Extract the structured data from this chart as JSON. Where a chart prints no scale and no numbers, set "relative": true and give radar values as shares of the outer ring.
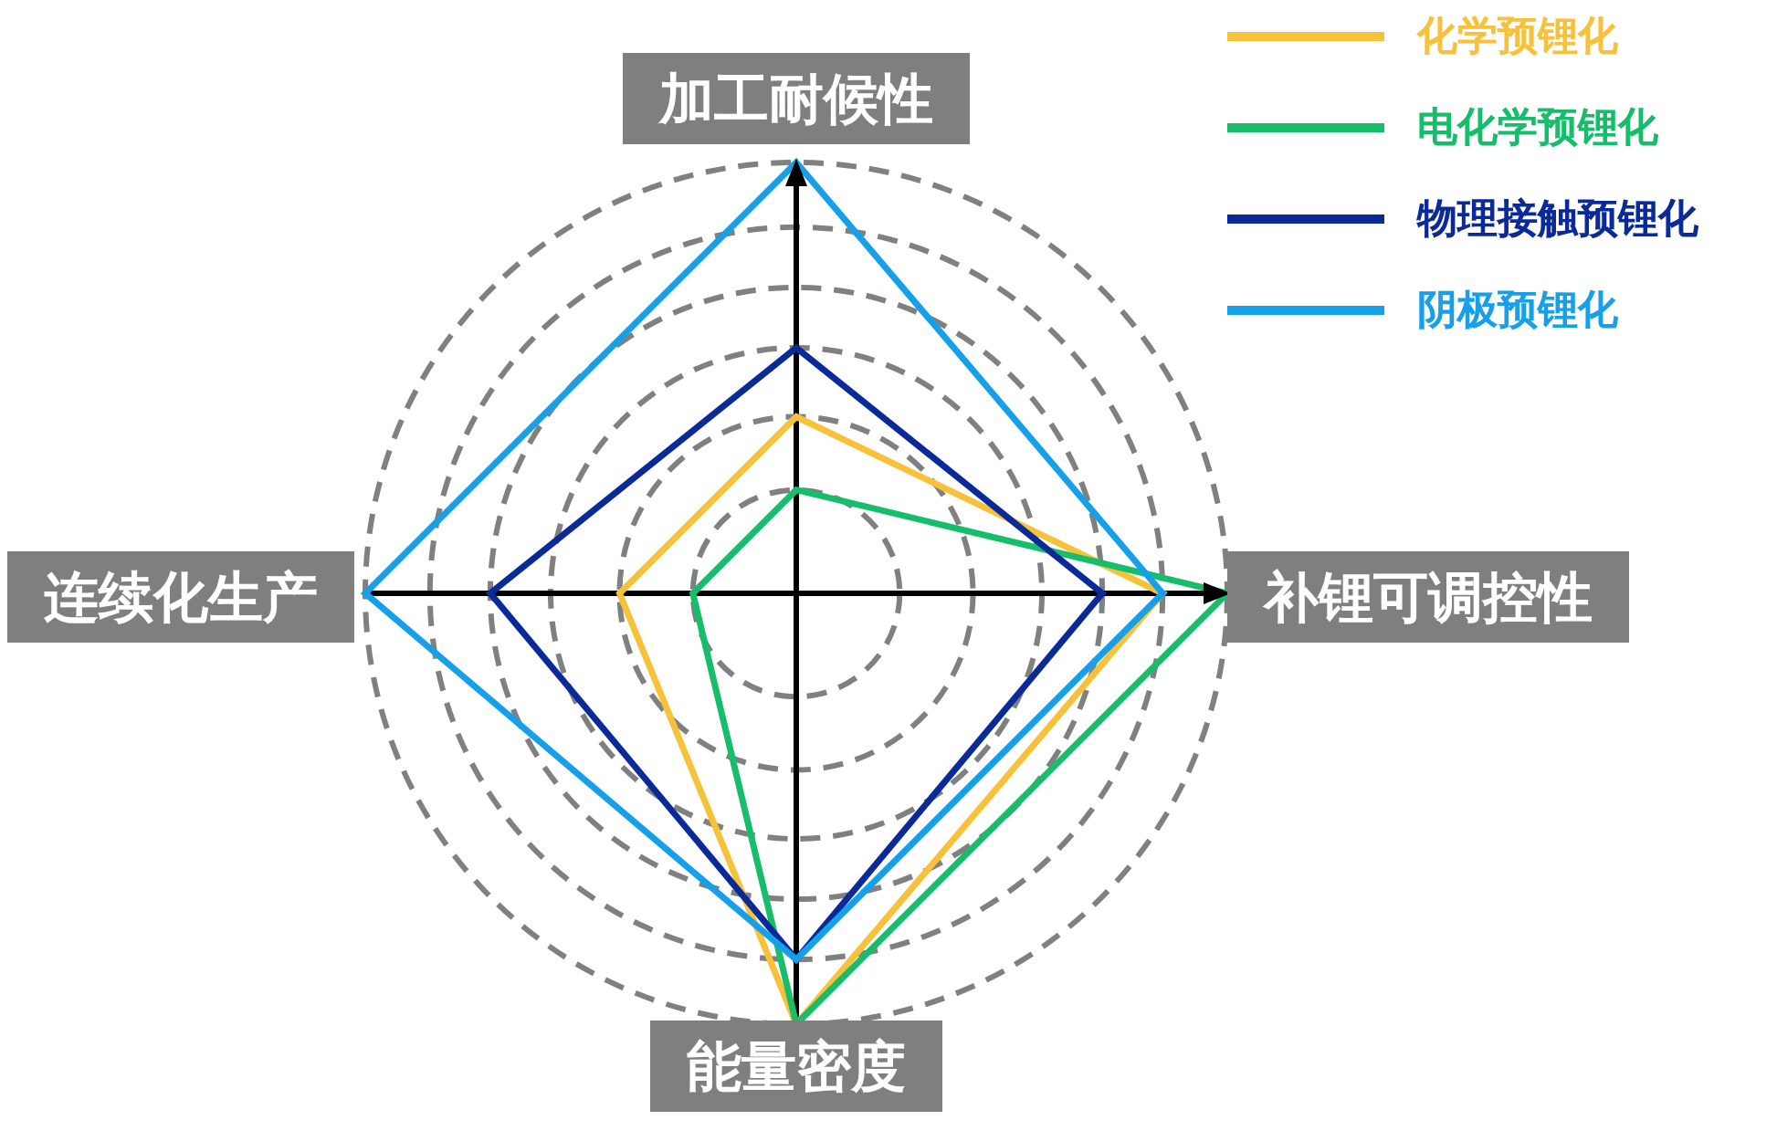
{
  "chart_data": {
    "type": "radar",
    "categories": [
      "加工耐候性",
      "补锂可调控性",
      "能量密度",
      "连续化生产"
    ],
    "relative": true,
    "grid": true,
    "legend": "top right",
    "series": [
      {
        "name": "化学预锂化",
        "color": "#f8c13a",
        "values": [
          0.41,
          0.85,
          1,
          0.41
        ]
      },
      {
        "name": "电化学预锂化",
        "color": "#16be6c",
        "values": [
          0.24,
          1,
          1,
          0.24
        ]
      },
      {
        "name": "物理接触预锂化",
        "color": "#0b2a9a",
        "values": [
          0.57,
          0.71,
          0.85,
          0.71
        ]
      },
      {
        "name": "阴极预锂化",
        "color": "#17a0ea",
        "values": [
          1,
          0.85,
          0.85,
          1
        ]
      }
    ]
  }
}
